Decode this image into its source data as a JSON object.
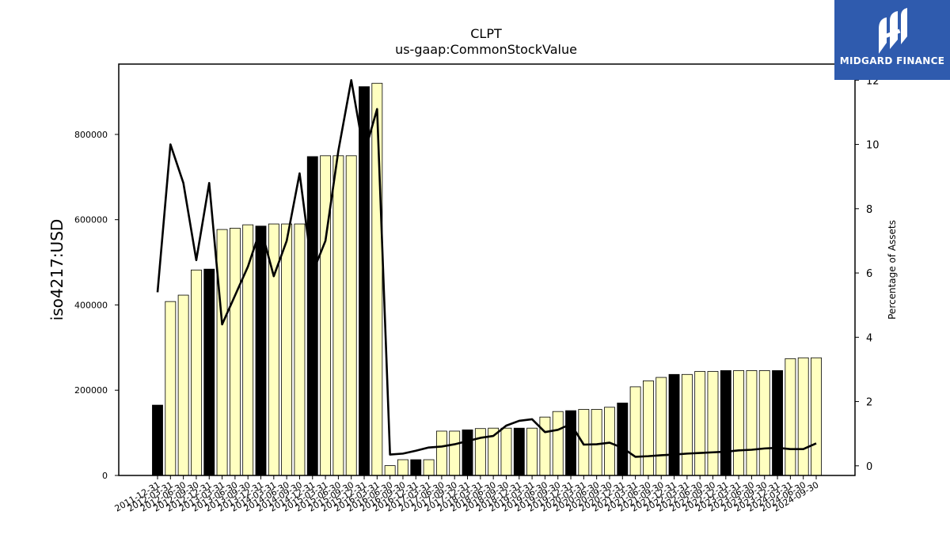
{
  "chart_data": {
    "type": "bar",
    "title": "CLPT",
    "subtitle": "us-gaap:CommonStockValue",
    "ylabel": "iso4217:USD",
    "y2label": "Percentage of Assets",
    "ylim": [
      0,
      965000
    ],
    "y2lim": [
      -0.3,
      12.5
    ],
    "yticks": [
      0,
      200000,
      400000,
      600000,
      800000
    ],
    "y2ticks": [
      0,
      2,
      4,
      6,
      8,
      10,
      12
    ],
    "categories": [
      "2011-12-31",
      "2012-03-31",
      "2012-06-30",
      "2012-09-30",
      "2012-12-31",
      "2013-03-31",
      "2013-06-30",
      "2013-09-30",
      "2013-12-31",
      "2014-03-31",
      "2014-06-30",
      "2014-09-30",
      "2014-12-31",
      "2015-03-31",
      "2015-06-30",
      "2015-09-30",
      "2015-12-31",
      "2016-03-31",
      "2016-06-30",
      "2016-09-30",
      "2016-12-31",
      "2017-03-31",
      "2017-06-30",
      "2017-09-30",
      "2017-12-31",
      "2018-03-31",
      "2018-06-30",
      "2018-09-30",
      "2018-12-31",
      "2019-03-31",
      "2019-06-30",
      "2019-09-30",
      "2019-12-31",
      "2020-03-31",
      "2020-06-30",
      "2020-09-30",
      "2020-12-31",
      "2021-03-31",
      "2021-06-30",
      "2021-09-30",
      "2021-12-31",
      "2022-03-31",
      "2022-06-30",
      "2022-09-30",
      "2022-12-31",
      "2023-03-31",
      "2023-06-30",
      "2023-09-30",
      "2023-12-31",
      "2024-03-31",
      "2024-06-30",
      "2024-09-30"
    ],
    "tick_labels": [
      "2011-12-31",
      "2012-03-31",
      "2012-06-30",
      "2012-09-30",
      "2012-12-31",
      "2013-03-31",
      "2013-06-30",
      "2013-09-30",
      "2013-12-31",
      "2014-03-31",
      "2014-06-30",
      "2014-09-30",
      "2014-12-31",
      "2015-03-31",
      "2015-06-30",
      "2015-09-30",
      "2015-12-31",
      "2016-03-31",
      "2016-06-30",
      "2016-09-30",
      "2016-12-31",
      "2017-03-31",
      "2017-06-30",
      "2017-09-30",
      "2017-12-31",
      "2018-03-31",
      "2018-06-30",
      "2018-09-30",
      "2018-12-31",
      "2019-03-31",
      "2019-06-30",
      "2019-09-30",
      "2019-12-31",
      "2020-03-31",
      "2020-06-30",
      "2020-09-30",
      "2020-12-31",
      "2021-03-31",
      "2021-06-30",
      "2021-09-30",
      "2021-12-31",
      "2022-03-31",
      "2022-06-30",
      "2022-09-30",
      "2022-12-31",
      "2023-03-31",
      "2023-06-30",
      "2023-09-30",
      "2023-12-31",
      "2024-03-31",
      "2024-06-30",
      "2024-09-30"
    ],
    "series": [
      {
        "type": "bar",
        "axis": "left",
        "values": [
          165000,
          408000,
          423000,
          482000,
          484000,
          577000,
          580000,
          588000,
          585000,
          590000,
          590000,
          590000,
          748000,
          750000,
          750000,
          750000,
          912000,
          920000,
          23000,
          37000,
          37000,
          37000,
          104000,
          104000,
          107000,
          110000,
          111000,
          111000,
          111000,
          111000,
          137000,
          150000,
          152000,
          155000,
          155000,
          160000,
          170000,
          208000,
          222000,
          230000,
          237000,
          237000,
          244000,
          244000,
          246000,
          246000,
          246000,
          246000,
          246000,
          274000,
          276000,
          276000
        ],
        "fill_colors": [
          "#000000",
          "#ffffc0",
          "#ffffc0",
          "#ffffc0",
          "#000000",
          "#ffffc0",
          "#ffffc0",
          "#ffffc0",
          "#000000",
          "#ffffc0",
          "#ffffc0",
          "#ffffc0",
          "#000000",
          "#ffffc0",
          "#ffffc0",
          "#ffffc0",
          "#000000",
          "#ffffc0",
          "#ffffc0",
          "#ffffc0",
          "#000000",
          "#ffffc0",
          "#ffffc0",
          "#ffffc0",
          "#000000",
          "#ffffc0",
          "#ffffc0",
          "#ffffc0",
          "#000000",
          "#ffffc0",
          "#ffffc0",
          "#ffffc0",
          "#000000",
          "#ffffc0",
          "#ffffc0",
          "#ffffc0",
          "#000000",
          "#ffffc0",
          "#ffffc0",
          "#ffffc0",
          "#000000",
          "#ffffc0",
          "#ffffc0",
          "#ffffc0",
          "#000000",
          "#ffffc0",
          "#ffffc0",
          "#ffffc0",
          "#000000",
          "#ffffc0",
          "#ffffc0",
          "#ffffc0"
        ]
      },
      {
        "type": "line",
        "axis": "right",
        "color": "#000000",
        "values": [
          5.4,
          10.0,
          8.8,
          6.4,
          8.8,
          4.4,
          5.3,
          6.2,
          7.4,
          5.9,
          7.0,
          9.1,
          6.0,
          7.0,
          9.8,
          12.0,
          9.7,
          11.1,
          0.35,
          0.38,
          0.47,
          0.57,
          0.6,
          0.67,
          0.77,
          0.87,
          0.93,
          1.25,
          1.4,
          1.45,
          1.05,
          1.12,
          1.3,
          0.66,
          0.67,
          0.72,
          0.56,
          0.28,
          0.3,
          0.33,
          0.35,
          0.38,
          0.4,
          0.42,
          0.44,
          0.48,
          0.5,
          0.54,
          0.56,
          0.52,
          0.52,
          0.7
        ]
      }
    ],
    "grid": false,
    "legend": "none"
  },
  "branding": {
    "logo_text": "MIDGARD FINANCE",
    "logo_color": "#2f5bae"
  }
}
